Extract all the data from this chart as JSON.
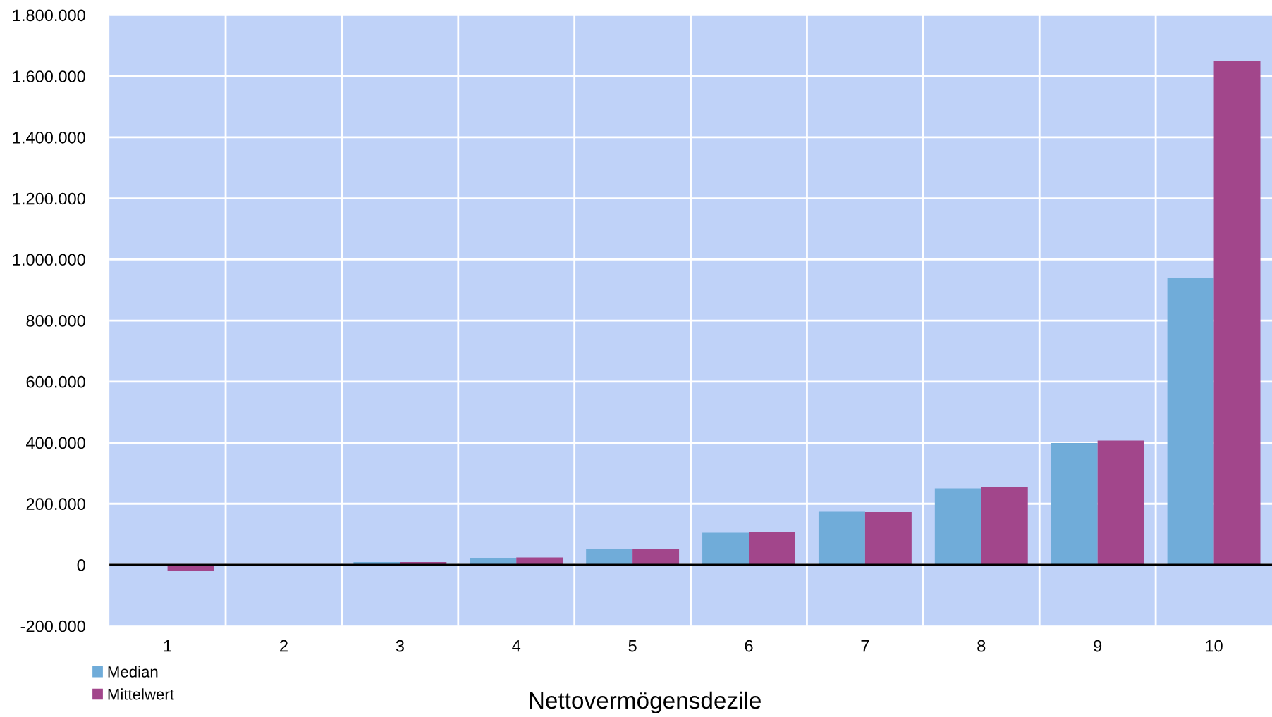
{
  "chart_data": {
    "type": "bar",
    "xlabel": "Nettovermögensdezile",
    "categories": [
      "1",
      "2",
      "3",
      "4",
      "5",
      "6",
      "7",
      "8",
      "9",
      "10"
    ],
    "series": [
      {
        "name": "Median",
        "color": "#70acd9",
        "values": [
          0,
          0,
          9000,
          23000,
          51000,
          105000,
          174000,
          250000,
          399000,
          939000
        ]
      },
      {
        "name": "Mittelwert",
        "color": "#a2468b",
        "values": [
          -19000,
          0,
          9000,
          24000,
          52000,
          106000,
          173000,
          254000,
          407000,
          1650000
        ]
      }
    ],
    "ylim": [
      -200000,
      1800000
    ],
    "yticks": [
      {
        "value": -200000,
        "label": "-200.000"
      },
      {
        "value": 0,
        "label": "0"
      },
      {
        "value": 200000,
        "label": "200.000"
      },
      {
        "value": 400000,
        "label": "400.000"
      },
      {
        "value": 600000,
        "label": "600.000"
      },
      {
        "value": 800000,
        "label": "800.000"
      },
      {
        "value": 1000000,
        "label": "1.000.000"
      },
      {
        "value": 1200000,
        "label": "1.200.000"
      },
      {
        "value": 1400000,
        "label": "1.400.000"
      },
      {
        "value": 1600000,
        "label": "1.600.000"
      },
      {
        "value": 1800000,
        "label": "1.800.000"
      }
    ],
    "ref_lines": [
      {
        "axis": "y",
        "value": 0,
        "color": "#000000"
      }
    ],
    "grid": true,
    "legend": "bottom left"
  }
}
